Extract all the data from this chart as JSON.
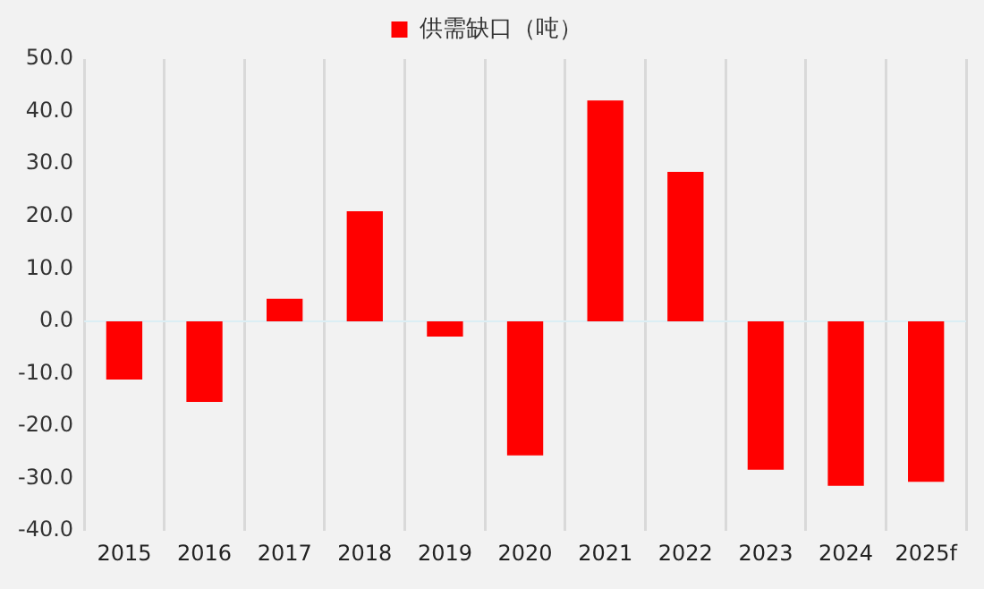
{
  "chart_data": {
    "type": "bar",
    "categories": [
      "2015",
      "2016",
      "2017",
      "2018",
      "2019",
      "2020",
      "2021",
      "2022",
      "2023",
      "2024",
      "2025f"
    ],
    "series": [
      {
        "name": "供需缺口（吨）",
        "color": "#ff0000",
        "values": [
          -11.1,
          -15.4,
          4.3,
          21.0,
          -2.9,
          -25.6,
          42.1,
          28.5,
          -28.3,
          -31.4,
          -30.6
        ]
      }
    ],
    "ylim": [
      -40,
      50
    ],
    "yticks": [
      {
        "value": -40,
        "label": "-40.0"
      },
      {
        "value": -30,
        "label": "-30.0"
      },
      {
        "value": -20,
        "label": "-20.0"
      },
      {
        "value": -10,
        "label": "-10.0"
      },
      {
        "value": 0,
        "label": "0.0"
      },
      {
        "value": 10,
        "label": "10.0"
      },
      {
        "value": 20,
        "label": "20.0"
      },
      {
        "value": 30,
        "label": "30.0"
      },
      {
        "value": 40,
        "label": "40.0"
      },
      {
        "value": 50,
        "label": "50.0"
      }
    ],
    "grid": "x",
    "legend": "top"
  }
}
